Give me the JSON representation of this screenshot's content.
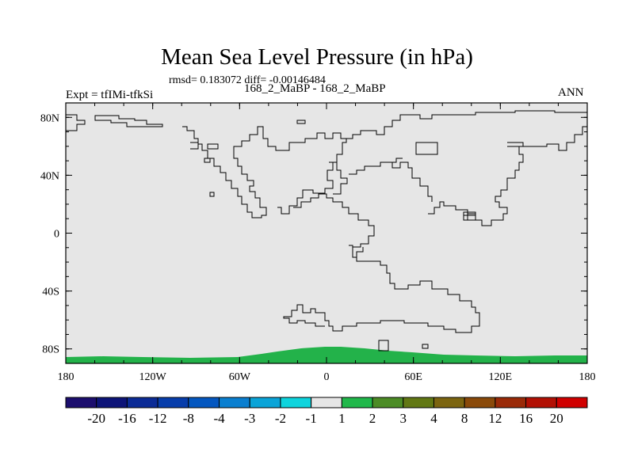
{
  "title": "Mean Sea Level Pressure (in hPa)",
  "stats_line": "rmsd= 0.183072 diff= -0.00146484",
  "periods_line": "168_2_MaBP - 168_2_MaBP",
  "expt_label": "Expt = tfIMi-tfkSi",
  "season_label": "ANN",
  "colors": {
    "ocean_land_field": "#e6e6e6",
    "antarctic_field": "#23b24a",
    "coastline": "#000000"
  },
  "chart_data": {
    "type": "heatmap",
    "projection": "cylindrical-equidistant",
    "xlim": [
      -180,
      180
    ],
    "ylim": [
      -90,
      90
    ],
    "x_ticks": [
      {
        "value": -180,
        "label": "180"
      },
      {
        "value": -120,
        "label": "120W"
      },
      {
        "value": -60,
        "label": "60W"
      },
      {
        "value": 0,
        "label": "0"
      },
      {
        "value": 60,
        "label": "60E"
      },
      {
        "value": 120,
        "label": "120E"
      },
      {
        "value": 180,
        "label": "180"
      }
    ],
    "y_ticks": [
      {
        "value": 80,
        "label": "80N"
      },
      {
        "value": 40,
        "label": "40N"
      },
      {
        "value": 0,
        "label": "0"
      },
      {
        "value": -40,
        "label": "40S"
      },
      {
        "value": -80,
        "label": "80S"
      }
    ],
    "field_summary": "difference field near zero everywhere (class -1 to 1) except a band of 1 to 2 over the southern high latitudes",
    "colorbar": {
      "colors": [
        "#1c0e6e",
        "#0d1478",
        "#0b2b96",
        "#073dab",
        "#0457c0",
        "#0a7fd0",
        "#0aa4d8",
        "#0ed4dd",
        "#e6e6e6",
        "#21b84b",
        "#4c8c26",
        "#627814",
        "#7c6510",
        "#8a4a0a",
        "#9a2a08",
        "#b21004",
        "#d00000"
      ],
      "labels": [
        "-20",
        "-16",
        "-12",
        "-8",
        "-4",
        "-3",
        "-2",
        "-1",
        "1",
        "2",
        "3",
        "4",
        "8",
        "12",
        "16",
        "20"
      ]
    }
  }
}
